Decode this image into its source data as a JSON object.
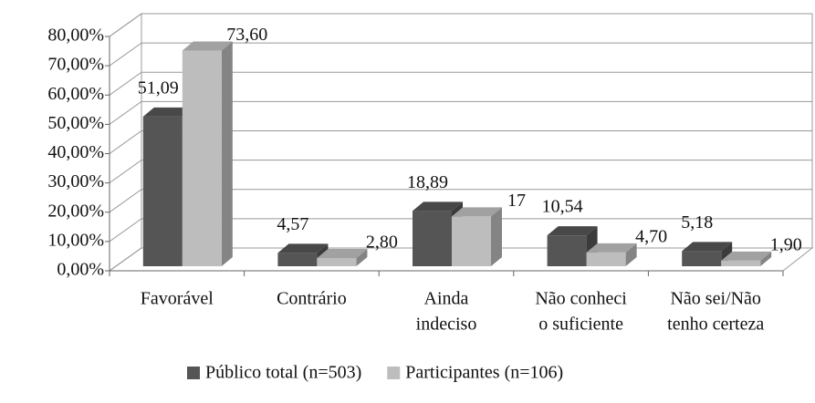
{
  "chart_data": {
    "type": "bar3d",
    "categories": [
      [
        "Favorável"
      ],
      [
        "Contrário"
      ],
      [
        "Ainda",
        "indeciso"
      ],
      [
        "Não conheci",
        "o suficiente"
      ],
      [
        "Não sei/Não",
        "tenho certeza"
      ]
    ],
    "series": [
      {
        "name": "Público total (n=503)",
        "color": "#555555",
        "values": [
          51.09,
          4.57,
          18.89,
          10.54,
          5.18
        ],
        "value_labels": [
          "51,09",
          "4,57",
          "18,89",
          "10,54",
          "5,18"
        ]
      },
      {
        "name": "Participantes (n=106)",
        "color": "#bdbdbd",
        "values": [
          73.6,
          2.8,
          17,
          4.7,
          1.9
        ],
        "value_labels": [
          "73,60",
          "2,80",
          "17",
          "4,70",
          "1,90"
        ]
      }
    ],
    "ylim": [
      0,
      80
    ],
    "yticks": [
      {
        "value": 0,
        "label": "0,00%"
      },
      {
        "value": 10,
        "label": "10,00%"
      },
      {
        "value": 20,
        "label": "20,00%"
      },
      {
        "value": 30,
        "label": "30,00%"
      },
      {
        "value": 40,
        "label": "40,00%"
      },
      {
        "value": 50,
        "label": "50,00%"
      },
      {
        "value": 60,
        "label": "60,00%"
      },
      {
        "value": 70,
        "label": "70,00%"
      },
      {
        "value": 80,
        "label": "80,00%"
      }
    ],
    "grid": true,
    "legend": "bottom"
  }
}
